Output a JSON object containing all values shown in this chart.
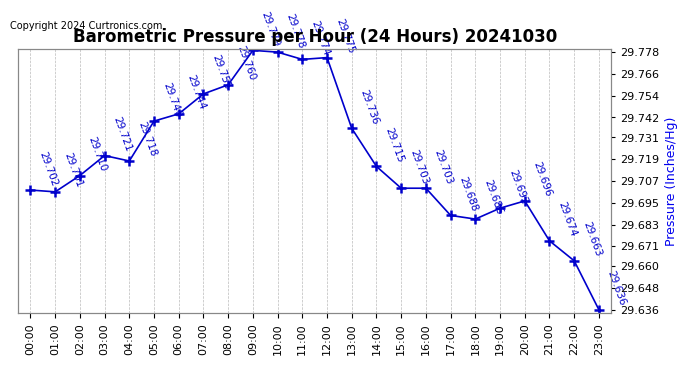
{
  "title": "Barometric Pressure per Hour (24 Hours) 20241030",
  "copyright": "Copyright 2024 Curtronics.com",
  "ylabel": "Pressure (Inches/Hg)",
  "hours": [
    "00:00",
    "01:00",
    "02:00",
    "03:00",
    "04:00",
    "05:00",
    "06:00",
    "07:00",
    "08:00",
    "09:00",
    "10:00",
    "11:00",
    "12:00",
    "13:00",
    "14:00",
    "15:00",
    "16:00",
    "17:00",
    "18:00",
    "19:00",
    "20:00",
    "21:00",
    "22:00",
    "23:00"
  ],
  "values": [
    29.702,
    29.701,
    29.71,
    29.721,
    29.718,
    29.74,
    29.744,
    29.755,
    29.76,
    29.779,
    29.778,
    29.774,
    29.775,
    29.736,
    29.715,
    29.703,
    29.703,
    29.688,
    29.686,
    29.692,
    29.696,
    29.674,
    29.663,
    29.636
  ],
  "yticks": [
    29.636,
    29.648,
    29.66,
    29.671,
    29.683,
    29.695,
    29.707,
    29.719,
    29.731,
    29.742,
    29.754,
    29.766,
    29.778
  ],
  "ylim_min": 29.634,
  "ylim_max": 29.78,
  "line_color": "#0000cc",
  "marker_color": "#0000cc",
  "label_color": "#0000cc",
  "title_color": "#000000",
  "copyright_color": "#000000",
  "ylabel_color": "#0000ee",
  "background_color": "#ffffff",
  "grid_color": "#aaaaaa",
  "title_fontsize": 12,
  "label_fontsize": 7.5,
  "tick_fontsize": 8,
  "ylabel_fontsize": 9
}
